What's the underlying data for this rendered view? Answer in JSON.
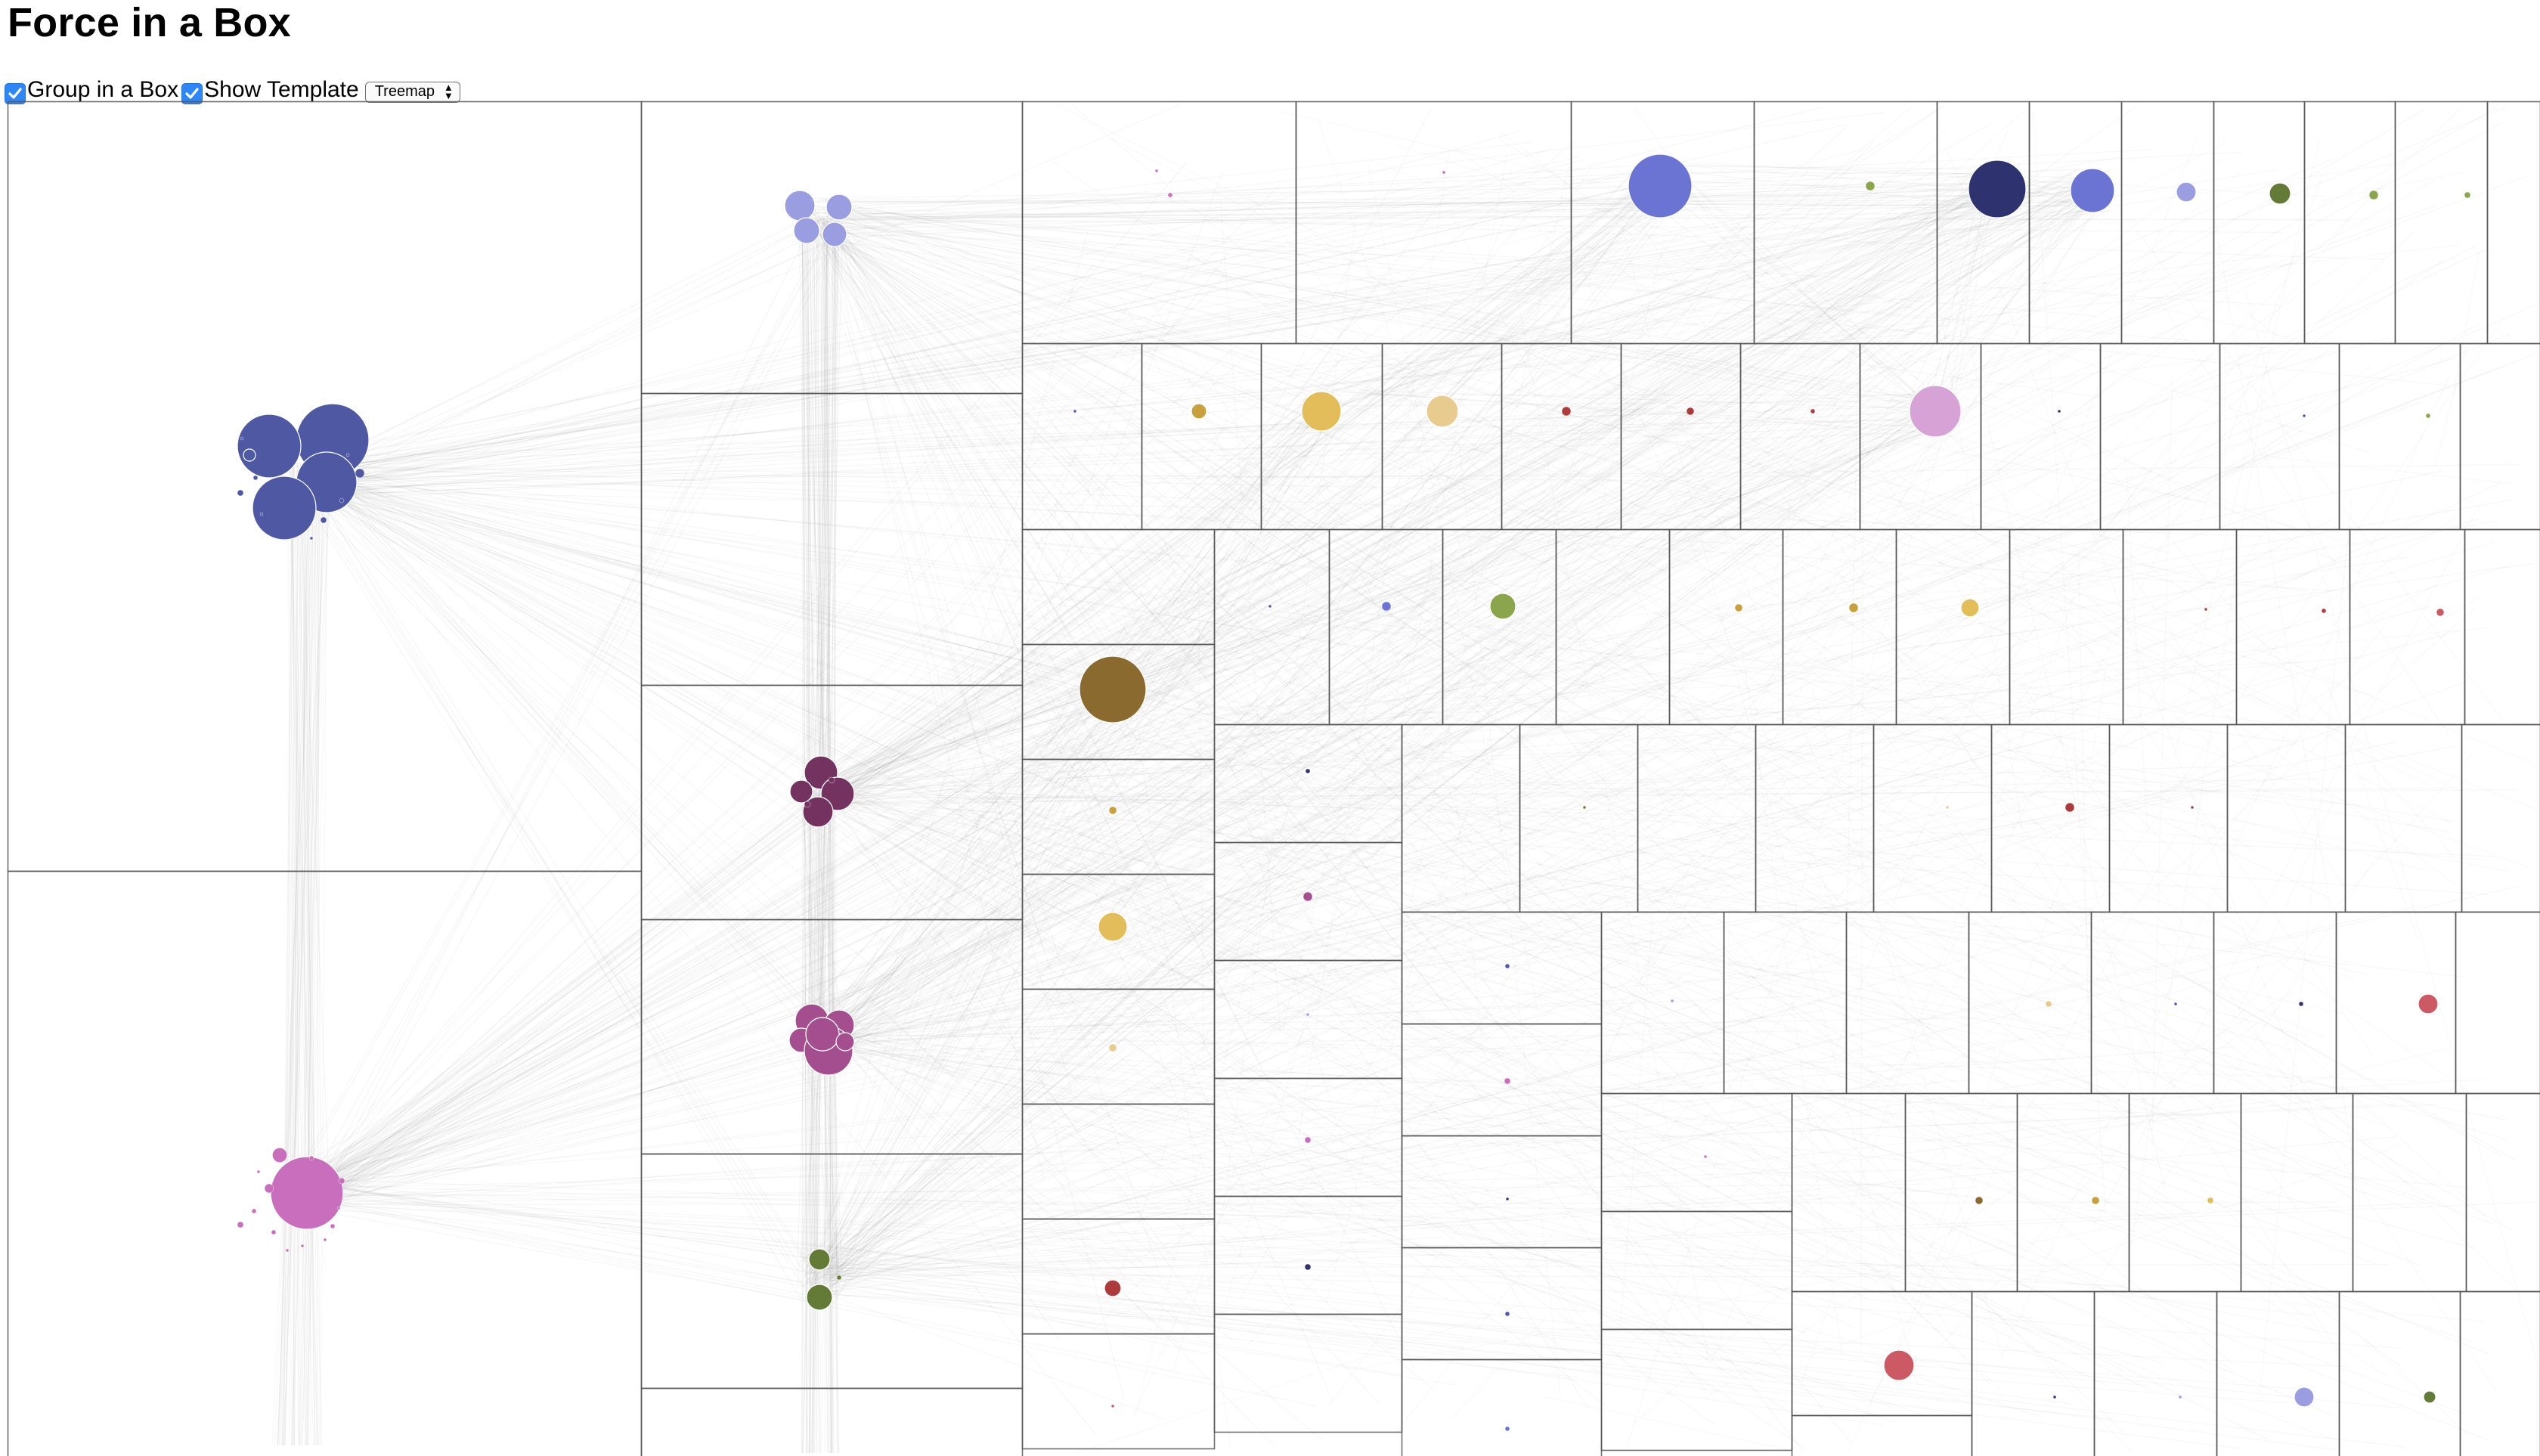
{
  "page": {
    "title": "Force in a Box"
  },
  "controls": {
    "group_in_box": {
      "label": "Group in a Box",
      "checked": true
    },
    "show_template": {
      "label": "Show Template",
      "checked": true
    },
    "template_select": {
      "value": "Treemap",
      "options": [
        "Treemap"
      ]
    }
  },
  "graph": {
    "colors": {
      "navy_blue": "#4f58a3",
      "lavender": "#9a9ee0",
      "plum": "#73325f",
      "magenta": "#a44e8f",
      "pink": "#c86ebd",
      "light_pink": "#d7a2d6",
      "olive": "#637b36",
      "light_olive": "#8aa54c",
      "brown": "#8a6a2e",
      "gold": "#c8a03d",
      "light_gold": "#e2bd5a",
      "sand": "#e8cc8f",
      "red": "#ad3b3b",
      "light_red": "#cb5a64",
      "dark_navy": "#2e3370",
      "royal_blue": "#6b73d3",
      "link": "#8c8c8c",
      "box_border": "#555555"
    },
    "groups": [
      {
        "name": "navy-blue-cluster",
        "color": "navy_blue",
        "node_count": 14
      },
      {
        "name": "lavender-cluster",
        "color": "lavender",
        "node_count": 4
      },
      {
        "name": "plum-cluster",
        "color": "plum",
        "node_count": 6
      },
      {
        "name": "magenta-cluster",
        "color": "magenta",
        "node_count": 6
      },
      {
        "name": "pink-cluster",
        "color": "pink",
        "node_count": 14
      },
      {
        "name": "olive-cluster",
        "color": "olive",
        "node_count": 3
      }
    ]
  }
}
